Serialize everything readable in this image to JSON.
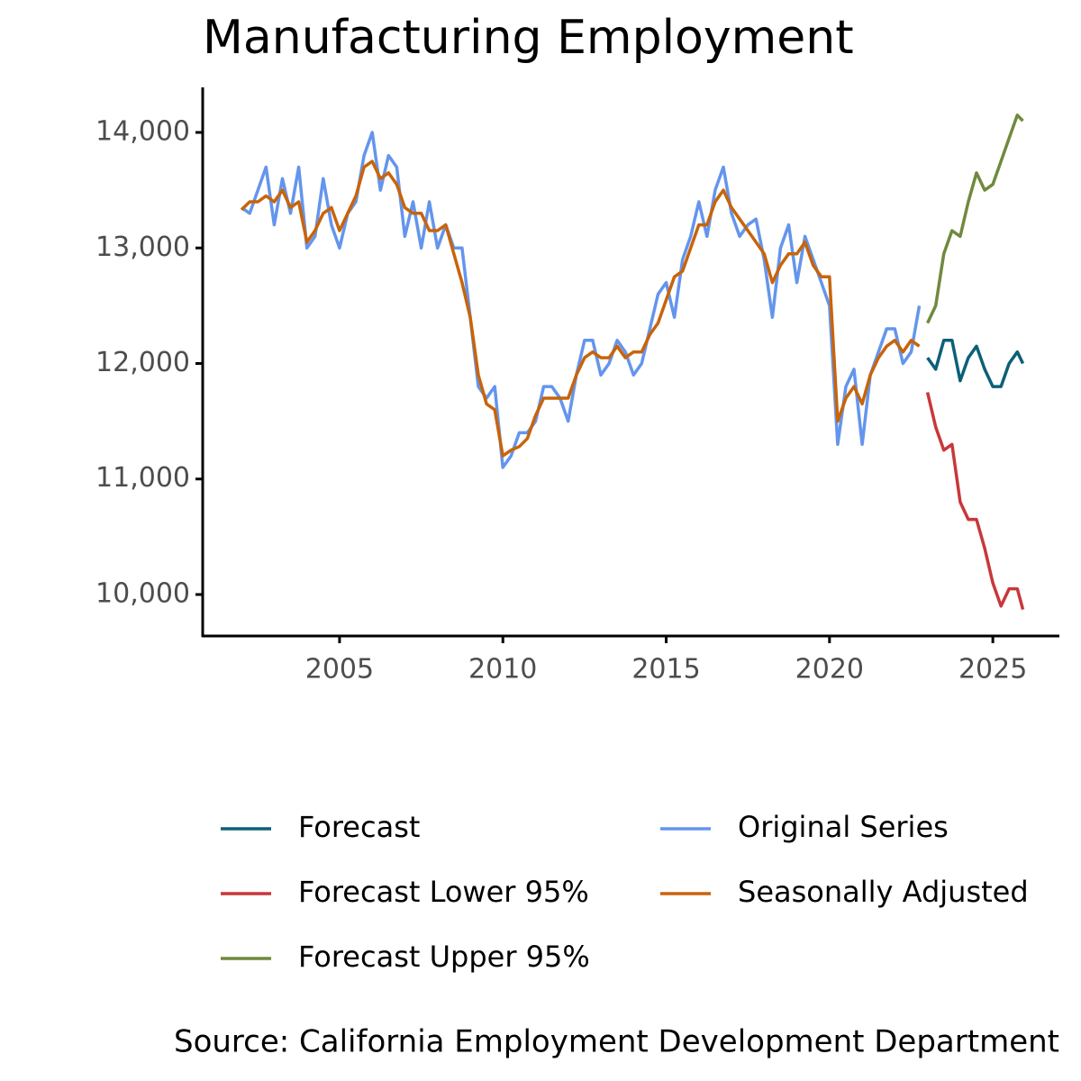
{
  "chart_data": {
    "type": "line",
    "title": "Manufacturing Employment",
    "caption": "Source: California Employment Development Department",
    "xlim": [
      2000.81,
      2027.01
    ],
    "xticks": [
      2005,
      2010,
      2015,
      2020,
      2025
    ],
    "ylim": [
      9641,
      14390
    ],
    "yticks": [
      {
        "value": 10000,
        "label": "10,000"
      },
      {
        "value": 11000,
        "label": "11,000"
      },
      {
        "value": 12000,
        "label": "12,000"
      },
      {
        "value": 13000,
        "label": "13,000"
      },
      {
        "value": 14000,
        "label": "14,000"
      }
    ],
    "series": [
      {
        "name": "Forecast",
        "color": "#0b6077",
        "x": [
          2023.0,
          2023.25,
          2023.5,
          2023.75,
          2024.0,
          2024.25,
          2024.5,
          2024.75,
          2025.0,
          2025.25,
          2025.5,
          2025.75,
          2025.92
        ],
        "values": [
          12050,
          11950,
          12200,
          12200,
          11850,
          12050,
          12150,
          11950,
          11800,
          11800,
          12000,
          12100,
          12000
        ]
      },
      {
        "name": "Forecast Lower 95%",
        "color": "#c8373a",
        "x": [
          2023.0,
          2023.25,
          2023.5,
          2023.75,
          2024.0,
          2024.25,
          2024.5,
          2024.75,
          2025.0,
          2025.25,
          2025.5,
          2025.75,
          2025.92
        ],
        "values": [
          11750,
          11450,
          11250,
          11300,
          10800,
          10650,
          10650,
          10400,
          10100,
          9900,
          10050,
          10050,
          9870
        ]
      },
      {
        "name": "Forecast Upper 95%",
        "color": "#6f8a3d",
        "x": [
          2023.0,
          2023.25,
          2023.5,
          2023.75,
          2024.0,
          2024.25,
          2024.5,
          2024.75,
          2025.0,
          2025.25,
          2025.5,
          2025.75,
          2025.92
        ],
        "values": [
          12350,
          12500,
          12950,
          13150,
          13100,
          13400,
          13650,
          13500,
          13550,
          13750,
          13950,
          14150,
          14100
        ]
      },
      {
        "name": "Original Series",
        "color": "#6495ed",
        "x": [
          2002.0,
          2002.25,
          2002.5,
          2002.75,
          2003.0,
          2003.25,
          2003.5,
          2003.75,
          2004.0,
          2004.25,
          2004.5,
          2004.75,
          2005.0,
          2005.25,
          2005.5,
          2005.75,
          2006.0,
          2006.25,
          2006.5,
          2006.75,
          2007.0,
          2007.25,
          2007.5,
          2007.75,
          2008.0,
          2008.25,
          2008.5,
          2008.75,
          2009.0,
          2009.25,
          2009.5,
          2009.75,
          2010.0,
          2010.25,
          2010.5,
          2010.75,
          2011.0,
          2011.25,
          2011.5,
          2011.75,
          2012.0,
          2012.25,
          2012.5,
          2012.75,
          2013.0,
          2013.25,
          2013.5,
          2013.75,
          2014.0,
          2014.25,
          2014.5,
          2014.75,
          2015.0,
          2015.25,
          2015.5,
          2015.75,
          2016.0,
          2016.25,
          2016.5,
          2016.75,
          2017.0,
          2017.25,
          2017.5,
          2017.75,
          2018.0,
          2018.25,
          2018.5,
          2018.75,
          2019.0,
          2019.25,
          2019.5,
          2019.75,
          2020.0,
          2020.25,
          2020.5,
          2020.75,
          2021.0,
          2021.25,
          2021.5,
          2021.75,
          2022.0,
          2022.25,
          2022.5,
          2022.75
        ],
        "values": [
          13350,
          13300,
          13500,
          13700,
          13200,
          13600,
          13300,
          13700,
          13000,
          13100,
          13600,
          13200,
          13000,
          13300,
          13400,
          13800,
          14000,
          13500,
          13800,
          13700,
          13100,
          13400,
          13000,
          13400,
          13000,
          13200,
          13000,
          13000,
          12400,
          11800,
          11700,
          11800,
          11100,
          11200,
          11400,
          11400,
          11500,
          11800,
          11800,
          11700,
          11500,
          11900,
          12200,
          12200,
          11900,
          12000,
          12200,
          12100,
          11900,
          12000,
          12300,
          12600,
          12700,
          12400,
          12900,
          13100,
          13400,
          13100,
          13500,
          13700,
          13300,
          13100,
          13200,
          13250,
          12900,
          12400,
          13000,
          13200,
          12700,
          13100,
          12900,
          12700,
          12500,
          11300,
          11800,
          11950,
          11300,
          11900,
          12100,
          12300,
          12300,
          12000,
          12100,
          12500
        ]
      },
      {
        "name": "Seasonally Adjusted",
        "color": "#c8640a",
        "x": [
          2002.0,
          2002.25,
          2002.5,
          2002.75,
          2003.0,
          2003.25,
          2003.5,
          2003.75,
          2004.0,
          2004.25,
          2004.5,
          2004.75,
          2005.0,
          2005.25,
          2005.5,
          2005.75,
          2006.0,
          2006.25,
          2006.5,
          2006.75,
          2007.0,
          2007.25,
          2007.5,
          2007.75,
          2008.0,
          2008.25,
          2008.5,
          2008.75,
          2009.0,
          2009.25,
          2009.5,
          2009.75,
          2010.0,
          2010.25,
          2010.5,
          2010.75,
          2011.0,
          2011.25,
          2011.5,
          2011.75,
          2012.0,
          2012.25,
          2012.5,
          2012.75,
          2013.0,
          2013.25,
          2013.5,
          2013.75,
          2014.0,
          2014.25,
          2014.5,
          2014.75,
          2015.0,
          2015.25,
          2015.5,
          2015.75,
          2016.0,
          2016.25,
          2016.5,
          2016.75,
          2017.0,
          2017.25,
          2017.5,
          2017.75,
          2018.0,
          2018.25,
          2018.5,
          2018.75,
          2019.0,
          2019.25,
          2019.5,
          2019.75,
          2020.0,
          2020.25,
          2020.5,
          2020.75,
          2021.0,
          2021.25,
          2021.5,
          2021.75,
          2022.0,
          2022.25,
          2022.5,
          2022.75
        ],
        "values": [
          13330,
          13400,
          13400,
          13450,
          13400,
          13500,
          13350,
          13400,
          13050,
          13150,
          13300,
          13350,
          13150,
          13300,
          13450,
          13700,
          13750,
          13600,
          13650,
          13550,
          13350,
          13300,
          13300,
          13150,
          13150,
          13200,
          12950,
          12700,
          12400,
          11900,
          11650,
          11600,
          11200,
          11250,
          11280,
          11350,
          11550,
          11700,
          11700,
          11700,
          11700,
          11900,
          12050,
          12100,
          12050,
          12050,
          12150,
          12050,
          12100,
          12100,
          12250,
          12350,
          12550,
          12750,
          12800,
          13000,
          13200,
          13200,
          13400,
          13500,
          13350,
          13250,
          13150,
          13050,
          12950,
          12700,
          12850,
          12950,
          12950,
          13050,
          12850,
          12750,
          12750,
          11500,
          11700,
          11800,
          11650,
          11900,
          12050,
          12150,
          12200,
          12100,
          12200,
          12150
        ]
      }
    ]
  }
}
